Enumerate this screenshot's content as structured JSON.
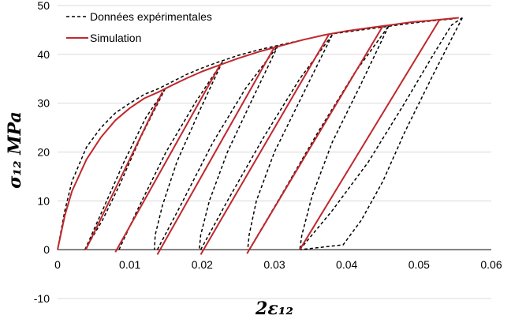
{
  "chart_data": {
    "type": "line",
    "title": "",
    "xlabel": "2ε₁₂",
    "ylabel": "σ₁₂  MPa",
    "xlim": [
      0,
      0.06
    ],
    "ylim": [
      -10,
      50
    ],
    "x_ticks": [
      "0",
      "0.01",
      "0.02",
      "0.03",
      "0.04",
      "0.05",
      "0.06"
    ],
    "y_ticks": [
      "-10",
      "0",
      "10",
      "20",
      "30",
      "40",
      "50"
    ],
    "grid": "horizontal",
    "legend_position": "top-left",
    "series": [
      {
        "name": "Données expérimentales",
        "style": "dashed",
        "color": "#000000",
        "envelope": [
          [
            0,
            0
          ],
          [
            0.001,
            8
          ],
          [
            0.002,
            14
          ],
          [
            0.004,
            21
          ],
          [
            0.006,
            25
          ],
          [
            0.008,
            28
          ],
          [
            0.01,
            30
          ],
          [
            0.012,
            31.8
          ],
          [
            0.014,
            33
          ],
          [
            0.016,
            34.5
          ],
          [
            0.018,
            36
          ],
          [
            0.02,
            37.2
          ],
          [
            0.022,
            38.3
          ],
          [
            0.025,
            39.8
          ],
          [
            0.028,
            41
          ],
          [
            0.031,
            42
          ],
          [
            0.034,
            43
          ],
          [
            0.037,
            44
          ],
          [
            0.04,
            44.6
          ],
          [
            0.043,
            45.2
          ],
          [
            0.046,
            45.8
          ],
          [
            0.049,
            46.4
          ],
          [
            0.052,
            46.9
          ],
          [
            0.055,
            47.3
          ]
        ],
        "loops": [
          {
            "unload": [
              [
                0.0149,
                33
              ],
              [
                0.0115,
                23
              ],
              [
                0.0085,
                13
              ],
              [
                0.0062,
                6
              ],
              [
                0.0042,
                1
              ],
              [
                0.0038,
                0
              ]
            ],
            "reload": [
              [
                0.0038,
                0
              ],
              [
                0.0062,
                8
              ],
              [
                0.0092,
                18
              ],
              [
                0.0122,
                27
              ],
              [
                0.0149,
                33
              ]
            ]
          },
          {
            "unload": [
              [
                0.0228,
                38.5
              ],
              [
                0.0195,
                28
              ],
              [
                0.0165,
                18
              ],
              [
                0.0145,
                9
              ],
              [
                0.0135,
                3
              ],
              [
                0.0134,
                0
              ]
            ],
            "reload": [
              [
                0.0085,
                0
              ],
              [
                0.011,
                8
              ],
              [
                0.015,
                20
              ],
              [
                0.019,
                30
              ],
              [
                0.0228,
                38.5
              ]
            ]
          },
          {
            "unload": [
              [
                0.0305,
                41.8
              ],
              [
                0.027,
                31
              ],
              [
                0.0235,
                20
              ],
              [
                0.021,
                10
              ],
              [
                0.0198,
                3
              ],
              [
                0.0196,
                0
              ]
            ],
            "reload": [
              [
                0.0138,
                0
              ],
              [
                0.017,
                9
              ],
              [
                0.0215,
                22
              ],
              [
                0.026,
                33
              ],
              [
                0.0305,
                41.8
              ]
            ]
          },
          {
            "unload": [
              [
                0.038,
                44
              ],
              [
                0.034,
                32
              ],
              [
                0.03,
                20
              ],
              [
                0.0275,
                10
              ],
              [
                0.0265,
                3
              ],
              [
                0.0263,
                0
              ]
            ],
            "reload": [
              [
                0.0198,
                0
              ],
              [
                0.0235,
                10
              ],
              [
                0.0285,
                23
              ],
              [
                0.0335,
                35
              ],
              [
                0.038,
                44
              ]
            ]
          },
          {
            "unload": [
              [
                0.0458,
                45.8
              ],
              [
                0.042,
                34
              ],
              [
                0.038,
                22
              ],
              [
                0.0352,
                11
              ],
              [
                0.0338,
                3
              ],
              [
                0.0335,
                0
              ]
            ],
            "reload": [
              [
                0.0265,
                0
              ],
              [
                0.0305,
                10
              ],
              [
                0.036,
                24
              ],
              [
                0.041,
                36
              ],
              [
                0.0458,
                45.8
              ]
            ]
          },
          {
            "unload": [
              [
                0.056,
                47.5
              ],
              [
                0.052,
                36
              ],
              [
                0.048,
                24
              ],
              [
                0.045,
                14
              ],
              [
                0.042,
                6
              ],
              [
                0.0395,
                1
              ],
              [
                0.0335,
                0
              ]
            ],
            "reload": [
              [
                0.0335,
                0
              ],
              [
                0.038,
                8
              ],
              [
                0.043,
                18
              ],
              [
                0.048,
                30
              ],
              [
                0.052,
                40
              ],
              [
                0.0545,
                46
              ],
              [
                0.056,
                47.5
              ]
            ]
          }
        ]
      },
      {
        "name": "Simulation",
        "style": "solid",
        "color": "#C0282D",
        "envelope": [
          [
            0,
            0
          ],
          [
            0.001,
            7
          ],
          [
            0.002,
            12
          ],
          [
            0.004,
            18.5
          ],
          [
            0.006,
            23
          ],
          [
            0.008,
            26.5
          ],
          [
            0.01,
            29
          ],
          [
            0.012,
            31
          ],
          [
            0.014,
            32.3
          ],
          [
            0.016,
            33.8
          ],
          [
            0.018,
            35.2
          ],
          [
            0.02,
            36.5
          ],
          [
            0.022,
            37.6
          ],
          [
            0.025,
            39.2
          ],
          [
            0.028,
            40.6
          ],
          [
            0.031,
            41.8
          ],
          [
            0.034,
            43
          ],
          [
            0.037,
            44
          ],
          [
            0.04,
            44.8
          ],
          [
            0.043,
            45.4
          ],
          [
            0.046,
            46
          ],
          [
            0.049,
            46.6
          ],
          [
            0.052,
            47
          ],
          [
            0.0555,
            47.5
          ]
        ],
        "unloads": [
          [
            [
              0.0145,
              32.3
            ],
            [
              0.0039,
              0
            ]
          ],
          [
            [
              0.0225,
              37.9
            ],
            [
              0.008,
              -0.5
            ]
          ],
          [
            [
              0.03,
              41.5
            ],
            [
              0.0138,
              -1
            ]
          ],
          [
            [
              0.0375,
              44
            ],
            [
              0.0198,
              -1
            ]
          ],
          [
            [
              0.045,
              45.8
            ],
            [
              0.0262,
              -0.8
            ]
          ],
          [
            [
              0.0528,
              47
            ],
            [
              0.0335,
              0
            ]
          ]
        ]
      }
    ]
  }
}
